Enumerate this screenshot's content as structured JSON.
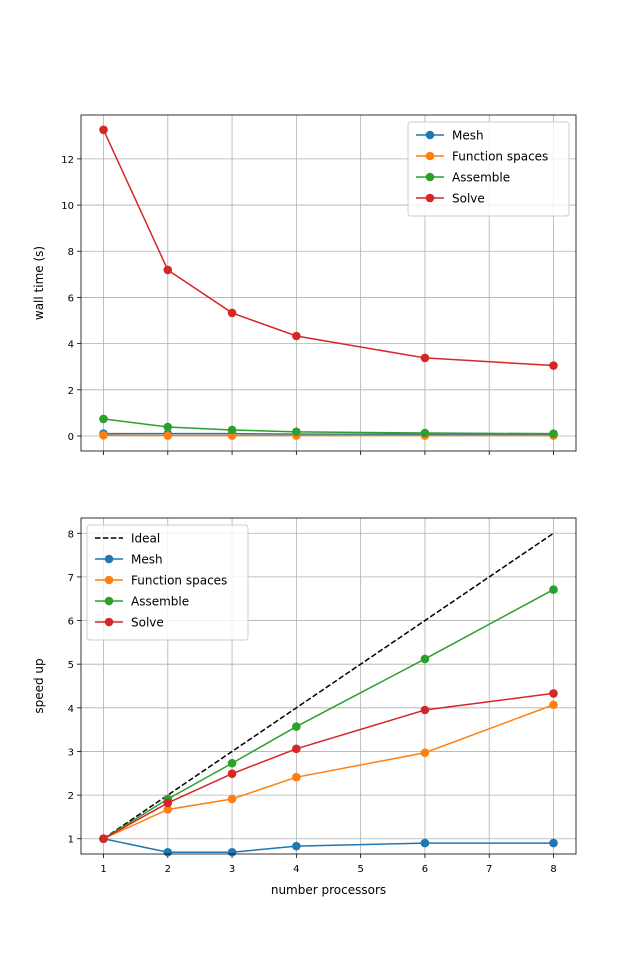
{
  "chart_data": [
    {
      "type": "line",
      "xlabel": "",
      "ylabel": "wall time (s)",
      "x": [
        1,
        2,
        3,
        4,
        6,
        8
      ],
      "xlim": [
        0.65,
        8.35
      ],
      "ylim": [
        -0.65,
        13.9
      ],
      "xticks": [
        1,
        2,
        3,
        4,
        5,
        6,
        7,
        8
      ],
      "yticks": [
        0,
        2,
        4,
        6,
        8,
        10,
        12
      ],
      "show_xticklabels": false,
      "grid": true,
      "legend": "top-right",
      "series": [
        {
          "name": "Mesh",
          "color": "#1f77b4",
          "values": [
            0.1,
            0.1,
            0.1,
            0.08,
            0.07,
            0.07
          ]
        },
        {
          "name": "Function spaces",
          "color": "#ff7f0e",
          "values": [
            0.03,
            0.02,
            0.02,
            0.02,
            0.02,
            0.02
          ]
        },
        {
          "name": "Assemble",
          "color": "#2ca02c",
          "values": [
            0.74,
            0.39,
            0.26,
            0.18,
            0.13,
            0.1
          ]
        },
        {
          "name": "Solve",
          "color": "#d62728",
          "values": [
            13.26,
            7.19,
            5.33,
            4.33,
            3.38,
            3.05
          ]
        }
      ]
    },
    {
      "type": "line",
      "xlabel": "number processors",
      "ylabel": "speed up",
      "x": [
        1,
        2,
        3,
        4,
        6,
        8
      ],
      "xlim": [
        0.65,
        8.35
      ],
      "ylim": [
        0.65,
        8.35
      ],
      "xticks": [
        1,
        2,
        3,
        4,
        5,
        6,
        7,
        8
      ],
      "yticks": [
        1,
        2,
        3,
        4,
        5,
        6,
        7,
        8
      ],
      "show_xticklabels": true,
      "grid": true,
      "legend": "top-left",
      "series": [
        {
          "name": "Ideal",
          "color": "#000000",
          "dashed": true,
          "markers": false,
          "x": [
            1,
            8
          ],
          "values": [
            1,
            8
          ]
        },
        {
          "name": "Mesh",
          "color": "#1f77b4",
          "values": [
            1,
            0.69,
            0.69,
            0.83,
            0.9,
            0.9
          ]
        },
        {
          "name": "Function spaces",
          "color": "#ff7f0e",
          "values": [
            1,
            1.67,
            1.91,
            2.41,
            2.97,
            4.07
          ]
        },
        {
          "name": "Assemble",
          "color": "#2ca02c",
          "values": [
            1,
            1.91,
            2.73,
            3.57,
            5.12,
            6.71
          ]
        },
        {
          "name": "Solve",
          "color": "#d62728",
          "values": [
            1,
            1.82,
            2.49,
            3.06,
            3.95,
            4.33
          ]
        }
      ]
    }
  ]
}
